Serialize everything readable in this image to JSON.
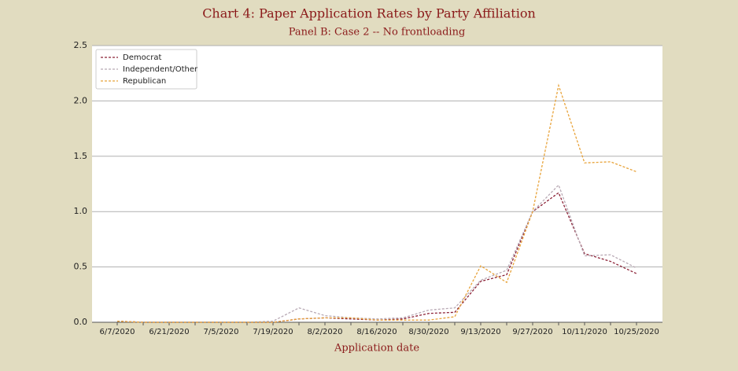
{
  "chart_data": {
    "type": "line",
    "title": "Chart 4: Paper Application Rates by Party Affiliation",
    "subtitle": "Panel B: Case 2 -- No frontloading",
    "x_label": "Application date",
    "categories": [
      "6/7/2020",
      null,
      "6/21/2020",
      null,
      "7/5/2020",
      null,
      "7/19/2020",
      null,
      "8/2/2020",
      null,
      "8/16/2020",
      null,
      "8/30/2020",
      null,
      "9/13/2020",
      null,
      "9/27/2020",
      null,
      "10/11/2020",
      null,
      "10/25/2020"
    ],
    "series": [
      {
        "name": "Democrat",
        "color": "#8b2035",
        "values": [
          0.01,
          0,
          0,
          0,
          0,
          0,
          0,
          0.03,
          0.04,
          0.03,
          0.02,
          0.03,
          0.08,
          0.09,
          0.37,
          0.43,
          1.0,
          1.17,
          0.62,
          0.55,
          0.44
        ]
      },
      {
        "name": "Independent/Other",
        "color": "#b8a9b4",
        "values": [
          0.01,
          0,
          0,
          0,
          0,
          0,
          0.01,
          0.13,
          0.06,
          0.04,
          0.03,
          0.04,
          0.11,
          0.13,
          0.38,
          0.47,
          1.0,
          1.24,
          0.6,
          0.61,
          0.49
        ]
      },
      {
        "name": "Republican",
        "color": "#e8a33a",
        "values": [
          0.01,
          0,
          0,
          0,
          0,
          0,
          0,
          0.03,
          0.04,
          0.04,
          0.02,
          0.02,
          0.02,
          0.05,
          0.51,
          0.36,
          1.0,
          2.14,
          1.44,
          1.45,
          1.36
        ]
      }
    ],
    "ylim": [
      0,
      2.5
    ],
    "yticks": [
      {
        "value": 0,
        "label": "0.0"
      },
      {
        "value": 0.5,
        "label": "0.5"
      },
      {
        "value": 1,
        "label": "1.0"
      },
      {
        "value": 1.5,
        "label": "1.5"
      },
      {
        "value": 2,
        "label": "2.0"
      },
      {
        "value": 2.5,
        "label": "2.5"
      }
    ],
    "grid": true,
    "legend": "upper left"
  }
}
